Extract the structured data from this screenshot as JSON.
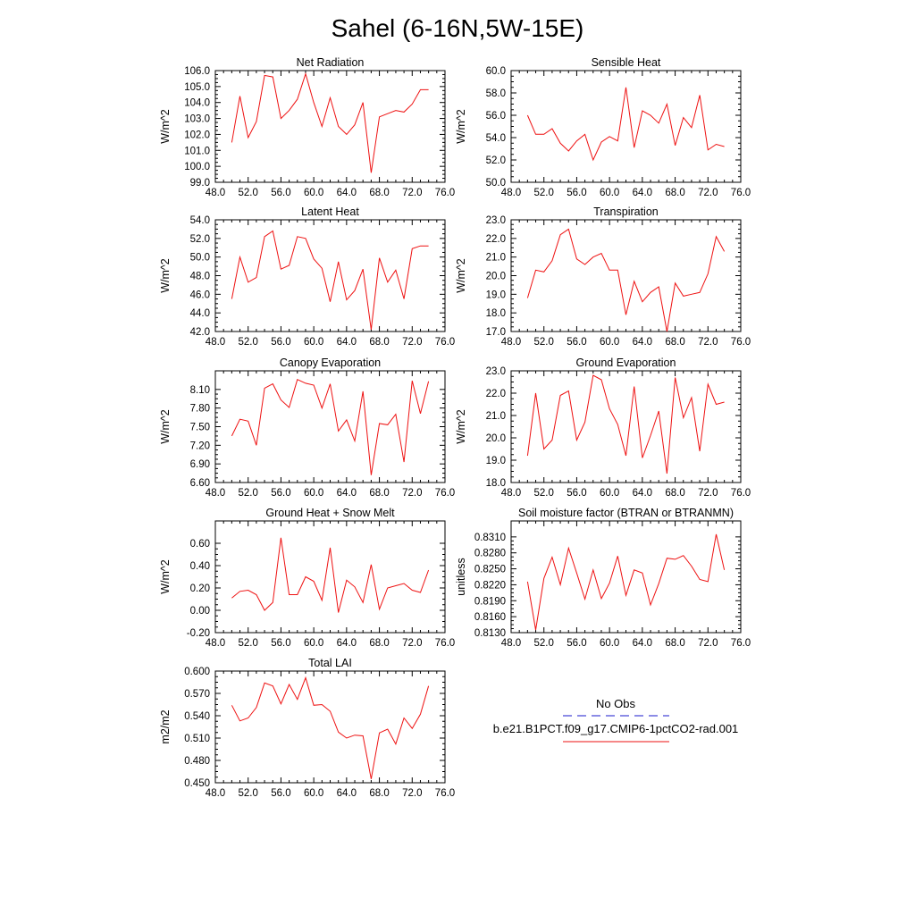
{
  "title": "Sahel (6-16N,5W-15E)",
  "legend": {
    "items": [
      {
        "label": "No Obs",
        "color": "#1a1acc",
        "dash": true
      },
      {
        "label": "b.e21.B1PCT.f09_g17.CMIP6-1pctCO2-rad.001",
        "color": "#ee1111",
        "dash": false
      }
    ]
  },
  "chart_data": [
    {
      "type": "line",
      "title": "Net Radiation",
      "ylabel": "W/m^2",
      "xlim": [
        48,
        76
      ],
      "ylim": [
        99,
        106
      ],
      "xticks": [
        "48.0",
        "52.0",
        "56.0",
        "60.0",
        "64.0",
        "68.0",
        "72.0",
        "76.0"
      ],
      "yticks": [
        "99.0",
        "100.0",
        "101.0",
        "102.0",
        "103.0",
        "104.0",
        "105.0",
        "106.0"
      ],
      "color": "#ee1111",
      "x": [
        50,
        51,
        52,
        53,
        54,
        55,
        56,
        57,
        58,
        59,
        60,
        61,
        62,
        63,
        64,
        65,
        66,
        67,
        68,
        69,
        70,
        71,
        72,
        73,
        74
      ],
      "y": [
        101.5,
        104.4,
        101.8,
        102.8,
        105.7,
        105.6,
        103.0,
        103.5,
        104.2,
        105.8,
        104.0,
        102.5,
        104.3,
        102.5,
        102.0,
        102.6,
        104.0,
        99.6,
        103.1,
        103.3,
        103.5,
        103.4,
        103.9,
        104.8,
        104.8
      ]
    },
    {
      "type": "line",
      "title": "Sensible Heat",
      "ylabel": "W/m^2",
      "xlim": [
        48,
        76
      ],
      "ylim": [
        50,
        60
      ],
      "xticks": [
        "48.0",
        "52.0",
        "56.0",
        "60.0",
        "64.0",
        "68.0",
        "72.0",
        "76.0"
      ],
      "yticks": [
        "50.0",
        "52.0",
        "54.0",
        "56.0",
        "58.0",
        "60.0"
      ],
      "color": "#ee1111",
      "x": [
        50,
        51,
        52,
        53,
        54,
        55,
        56,
        57,
        58,
        59,
        60,
        61,
        62,
        63,
        64,
        65,
        66,
        67,
        68,
        69,
        70,
        71,
        72,
        73,
        74
      ],
      "y": [
        56.0,
        54.3,
        54.3,
        54.8,
        53.5,
        52.8,
        53.7,
        54.3,
        52.0,
        53.6,
        54.1,
        53.7,
        58.5,
        53.1,
        56.4,
        56.0,
        55.3,
        57.0,
        53.3,
        55.8,
        54.9,
        57.8,
        52.9,
        53.4,
        53.2
      ]
    },
    {
      "type": "line",
      "title": "Latent Heat",
      "ylabel": "W/m^2",
      "xlim": [
        48,
        76
      ],
      "ylim": [
        42,
        54
      ],
      "xticks": [
        "48.0",
        "52.0",
        "56.0",
        "60.0",
        "64.0",
        "68.0",
        "72.0",
        "76.0"
      ],
      "yticks": [
        "42.0",
        "44.0",
        "46.0",
        "48.0",
        "50.0",
        "52.0",
        "54.0"
      ],
      "color": "#ee1111",
      "x": [
        50,
        51,
        52,
        53,
        54,
        55,
        56,
        57,
        58,
        59,
        60,
        61,
        62,
        63,
        64,
        65,
        66,
        67,
        68,
        69,
        70,
        71,
        72,
        73,
        74
      ],
      "y": [
        45.5,
        50.0,
        47.3,
        47.8,
        52.2,
        52.8,
        48.7,
        49.1,
        52.2,
        52.0,
        49.8,
        48.8,
        45.2,
        49.5,
        45.4,
        46.4,
        48.7,
        42.2,
        49.9,
        47.3,
        48.6,
        45.5,
        50.9,
        51.2,
        51.2
      ]
    },
    {
      "type": "line",
      "title": "Transpiration",
      "ylabel": "W/m^2",
      "xlim": [
        48,
        76
      ],
      "ylim": [
        17,
        23
      ],
      "xticks": [
        "48.0",
        "52.0",
        "56.0",
        "60.0",
        "64.0",
        "68.0",
        "72.0",
        "76.0"
      ],
      "yticks": [
        "17.0",
        "18.0",
        "19.0",
        "20.0",
        "21.0",
        "22.0",
        "23.0"
      ],
      "color": "#ee1111",
      "x": [
        50,
        51,
        52,
        53,
        54,
        55,
        56,
        57,
        58,
        59,
        60,
        61,
        62,
        63,
        64,
        65,
        66,
        67,
        68,
        69,
        70,
        71,
        72,
        73,
        74
      ],
      "y": [
        18.8,
        20.3,
        20.2,
        20.8,
        22.2,
        22.5,
        20.9,
        20.6,
        21.0,
        21.2,
        20.3,
        20.3,
        17.9,
        19.7,
        18.6,
        19.1,
        19.4,
        17.0,
        19.6,
        18.9,
        19.0,
        19.1,
        20.1,
        22.1,
        21.3
      ]
    },
    {
      "type": "line",
      "title": "Canopy Evaporation",
      "ylabel": "W/m^2",
      "xlim": [
        48,
        76
      ],
      "ylim": [
        6.6,
        8.4
      ],
      "xticks": [
        "48.0",
        "52.0",
        "56.0",
        "60.0",
        "64.0",
        "68.0",
        "72.0",
        "76.0"
      ],
      "yticks": [
        "6.60",
        "6.90",
        "7.20",
        "7.50",
        "7.80",
        "8.10"
      ],
      "color": "#ee1111",
      "x": [
        50,
        51,
        52,
        53,
        54,
        55,
        56,
        57,
        58,
        59,
        60,
        61,
        62,
        63,
        64,
        65,
        66,
        67,
        68,
        69,
        70,
        71,
        72,
        73,
        74
      ],
      "y": [
        7.35,
        7.62,
        7.59,
        7.2,
        8.12,
        8.19,
        7.93,
        7.81,
        8.26,
        8.2,
        8.17,
        7.8,
        8.19,
        7.43,
        7.61,
        7.27,
        8.07,
        6.72,
        7.55,
        7.53,
        7.7,
        6.93,
        8.24,
        7.71,
        8.23
      ]
    },
    {
      "type": "line",
      "title": "Ground Evaporation",
      "ylabel": "W/m^2",
      "xlim": [
        48,
        76
      ],
      "ylim": [
        18,
        23
      ],
      "xticks": [
        "48.0",
        "52.0",
        "56.0",
        "60.0",
        "64.0",
        "68.0",
        "72.0",
        "76.0"
      ],
      "yticks": [
        "18.0",
        "19.0",
        "20.0",
        "21.0",
        "22.0",
        "23.0"
      ],
      "color": "#ee1111",
      "x": [
        50,
        51,
        52,
        53,
        54,
        55,
        56,
        57,
        58,
        59,
        60,
        61,
        62,
        63,
        64,
        65,
        66,
        67,
        68,
        69,
        70,
        71,
        72,
        73,
        74
      ],
      "y": [
        19.2,
        22.0,
        19.5,
        19.9,
        21.9,
        22.1,
        19.9,
        20.7,
        22.8,
        22.6,
        21.3,
        20.6,
        19.2,
        22.3,
        19.1,
        20.1,
        21.2,
        18.4,
        22.7,
        20.9,
        21.8,
        19.4,
        22.4,
        21.5,
        21.6
      ]
    },
    {
      "type": "line",
      "title": "Ground Heat + Snow Melt",
      "ylabel": "W/m^2",
      "xlim": [
        48,
        76
      ],
      "ylim": [
        -0.2,
        0.8
      ],
      "xticks": [
        "48.0",
        "52.0",
        "56.0",
        "60.0",
        "64.0",
        "68.0",
        "72.0",
        "76.0"
      ],
      "yticks": [
        "-0.20",
        "0.00",
        "0.20",
        "0.40",
        "0.60"
      ],
      "color": "#ee1111",
      "x": [
        50,
        51,
        52,
        53,
        54,
        55,
        56,
        57,
        58,
        59,
        60,
        61,
        62,
        63,
        64,
        65,
        66,
        67,
        68,
        69,
        70,
        71,
        72,
        73,
        74
      ],
      "y": [
        0.11,
        0.17,
        0.18,
        0.14,
        0.0,
        0.07,
        0.65,
        0.14,
        0.14,
        0.3,
        0.26,
        0.09,
        0.56,
        -0.02,
        0.27,
        0.21,
        0.07,
        0.41,
        0.01,
        0.2,
        0.22,
        0.24,
        0.18,
        0.16,
        0.36
      ]
    },
    {
      "type": "line",
      "title": "Soil moisture factor (BTRAN or BTRANMN)",
      "ylabel": "unitless",
      "xlim": [
        48,
        76
      ],
      "ylim": [
        0.813,
        0.834
      ],
      "xticks": [
        "48.0",
        "52.0",
        "56.0",
        "60.0",
        "64.0",
        "68.0",
        "72.0",
        "76.0"
      ],
      "yticks": [
        "0.8130",
        "0.8160",
        "0.8190",
        "0.8220",
        "0.8250",
        "0.8280",
        "0.8310"
      ],
      "color": "#ee1111",
      "x": [
        50,
        51,
        52,
        53,
        54,
        55,
        56,
        57,
        58,
        59,
        60,
        61,
        62,
        63,
        64,
        65,
        66,
        67,
        68,
        69,
        70,
        71,
        72,
        73,
        74
      ],
      "y": [
        0.8226,
        0.8135,
        0.8232,
        0.8272,
        0.822,
        0.8289,
        0.8242,
        0.8193,
        0.8248,
        0.8194,
        0.8223,
        0.8274,
        0.82,
        0.8248,
        0.8242,
        0.8182,
        0.8222,
        0.827,
        0.8268,
        0.8275,
        0.8255,
        0.823,
        0.8226,
        0.8315,
        0.8248
      ]
    },
    {
      "type": "line",
      "title": "Total LAI",
      "ylabel": "m2/m2",
      "xlim": [
        48,
        76
      ],
      "ylim": [
        0.45,
        0.6
      ],
      "xticks": [
        "48.0",
        "52.0",
        "56.0",
        "60.0",
        "64.0",
        "68.0",
        "72.0",
        "76.0"
      ],
      "yticks": [
        "0.450",
        "0.480",
        "0.510",
        "0.540",
        "0.570",
        "0.600"
      ],
      "color": "#ee1111",
      "x": [
        50,
        51,
        52,
        53,
        54,
        55,
        56,
        57,
        58,
        59,
        60,
        61,
        62,
        63,
        64,
        65,
        66,
        67,
        68,
        69,
        70,
        71,
        72,
        73,
        74
      ],
      "y": [
        0.554,
        0.533,
        0.537,
        0.551,
        0.584,
        0.58,
        0.556,
        0.582,
        0.562,
        0.591,
        0.554,
        0.555,
        0.546,
        0.518,
        0.51,
        0.514,
        0.513,
        0.455,
        0.517,
        0.522,
        0.502,
        0.537,
        0.523,
        0.542,
        0.58
      ]
    }
  ]
}
